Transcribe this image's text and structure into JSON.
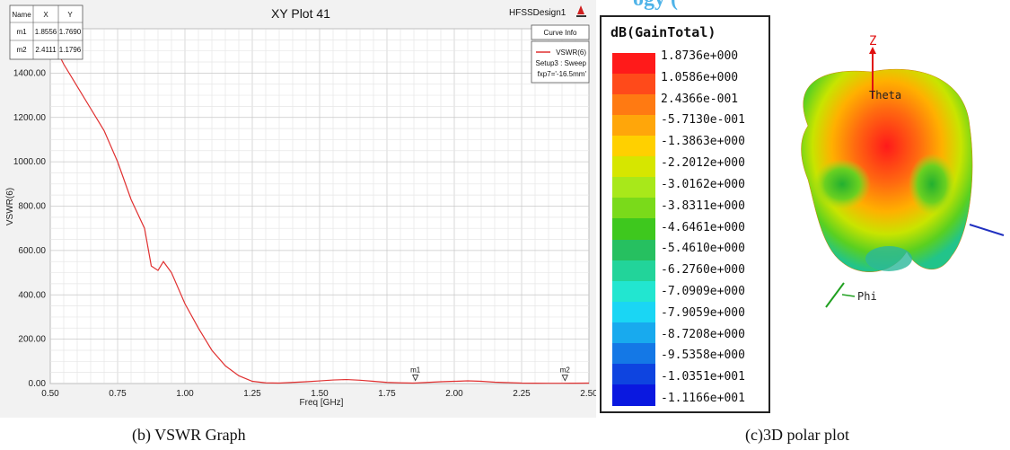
{
  "header_fragment": "ogy (",
  "vswr_panel": {
    "title": "XY Plot 41",
    "design_name": "HFSSDesign1",
    "marker_table": {
      "headers": [
        "Name",
        "X",
        "Y"
      ],
      "rows": [
        [
          "m1",
          "1.8556",
          "1.7690"
        ],
        [
          "m2",
          "2.4111",
          "1.1796"
        ]
      ]
    },
    "curve_info": {
      "title": "Curve Info",
      "series": "VSWR(6)",
      "setup": "Setup3 : Sweep",
      "param": "fxp7='-16.5mm'"
    },
    "markers": [
      {
        "label": "m1",
        "x": 1.8556,
        "y": 1.769
      },
      {
        "label": "m2",
        "x": 2.4111,
        "y": 1.1796
      }
    ]
  },
  "chart_data": [
    {
      "type": "line",
      "title": "XY Plot 41",
      "xlabel": "Freq [GHz]",
      "ylabel": "VSWR(6)",
      "xlim": [
        0.5,
        2.5
      ],
      "ylim": [
        0,
        1600
      ],
      "xticks": [
        "0.50",
        "0.75",
        "1.00",
        "1.25",
        "1.50",
        "1.75",
        "2.00",
        "2.25",
        "2.50"
      ],
      "yticks": [
        "0.00",
        "200.00",
        "400.00",
        "600.00",
        "800.00",
        "1000.00",
        "1200.00",
        "1400.00"
      ],
      "grid": true,
      "series": [
        {
          "name": "VSWR(6)",
          "color": "#e03030",
          "x": [
            0.5,
            0.55,
            0.6,
            0.65,
            0.7,
            0.75,
            0.8,
            0.85,
            0.875,
            0.9,
            0.92,
            0.95,
            1.0,
            1.05,
            1.1,
            1.15,
            1.2,
            1.25,
            1.3,
            1.35,
            1.4,
            1.45,
            1.5,
            1.55,
            1.6,
            1.65,
            1.7,
            1.75,
            1.8,
            1.85,
            1.9,
            1.95,
            2.0,
            2.05,
            2.1,
            2.15,
            2.2,
            2.25,
            2.3,
            2.35,
            2.4,
            2.45,
            2.5
          ],
          "y": [
            1560,
            1440,
            1340,
            1240,
            1140,
            1000,
            830,
            700,
            530,
            510,
            550,
            500,
            360,
            250,
            150,
            80,
            35,
            10,
            3,
            2,
            5,
            8,
            12,
            16,
            18,
            15,
            10,
            5,
            3,
            2,
            5,
            8,
            10,
            12,
            10,
            6,
            4,
            2,
            1.5,
            1.2,
            1.18,
            1.5,
            2
          ]
        }
      ]
    },
    {
      "type": "heatmap",
      "title": "dB(GainTotal)",
      "levels": [
        "1.8736e+000",
        "1.0586e+000",
        "2.4366e-001",
        "-5.7130e-001",
        "-1.3863e+000",
        "-2.2012e+000",
        "-3.0162e+000",
        "-3.8311e+000",
        "-4.6461e+000",
        "-5.4610e+000",
        "-6.2760e+000",
        "-7.0909e+000",
        "-7.9059e+000",
        "-8.7208e+000",
        "-9.5358e+000",
        "-1.0351e+001",
        "-1.1166e+001"
      ],
      "colors": [
        "#ff1a1a",
        "#ff4a1a",
        "#ff7a12",
        "#ffa60a",
        "#ffd000",
        "#d6e600",
        "#a8e81a",
        "#7ada1a",
        "#3ec81e",
        "#26c060",
        "#22d49a",
        "#22e6d0",
        "#1ad6f4",
        "#18aaee",
        "#1478e6",
        "#0e44e0",
        "#0a18e0"
      ]
    }
  ],
  "polar_plot": {
    "axis_labels": {
      "z": "Z",
      "theta": "Theta",
      "phi": "Phi"
    },
    "axis_colors": {
      "z": "#e01010",
      "x": "#20a020",
      "y": "#2030c0"
    }
  },
  "captions": {
    "left": "(b) VSWR Graph",
    "right": "(c)3D polar plot"
  }
}
